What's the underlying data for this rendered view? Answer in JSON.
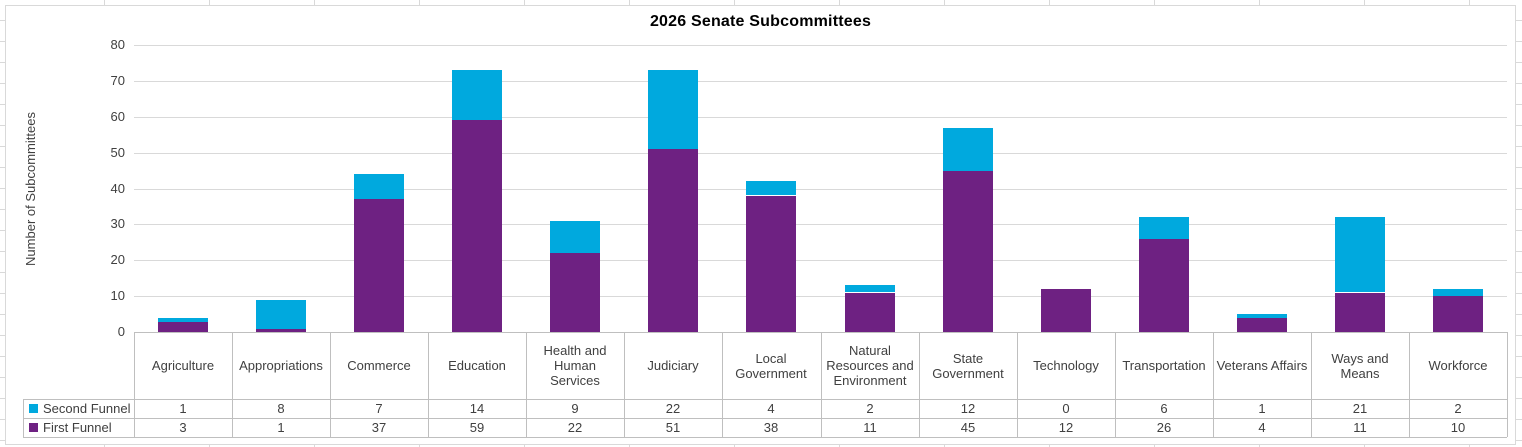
{
  "chart_data": {
    "type": "bar",
    "stacked": true,
    "title": "2026 Senate Subcommittees",
    "xlabel": "",
    "ylabel": "Number of Subcommittees",
    "ylim": [
      0,
      80
    ],
    "yticks": [
      0,
      10,
      20,
      30,
      40,
      50,
      60,
      70,
      80
    ],
    "grid": true,
    "legend_position": "data-table-left",
    "data_table_shown": true,
    "categories": [
      "Agriculture",
      "Appropriations",
      "Commerce",
      "Education",
      "Health and Human Services",
      "Judiciary",
      "Local Government",
      "Natural Resources and Environment",
      "State Government",
      "Technology",
      "Transportation",
      "Veterans Affairs",
      "Ways and Means",
      "Workforce"
    ],
    "series": [
      {
        "name": "First Funnel",
        "color": "#6E2182",
        "values": [
          3,
          1,
          37,
          59,
          22,
          51,
          38,
          11,
          45,
          12,
          26,
          4,
          11,
          10
        ]
      },
      {
        "name": "Second Funnel",
        "color": "#00A9DE",
        "values": [
          1,
          8,
          7,
          14,
          9,
          22,
          4,
          2,
          12,
          0,
          6,
          1,
          21,
          2
        ]
      }
    ],
    "table_row_order": [
      "Second Funnel",
      "First Funnel"
    ]
  }
}
